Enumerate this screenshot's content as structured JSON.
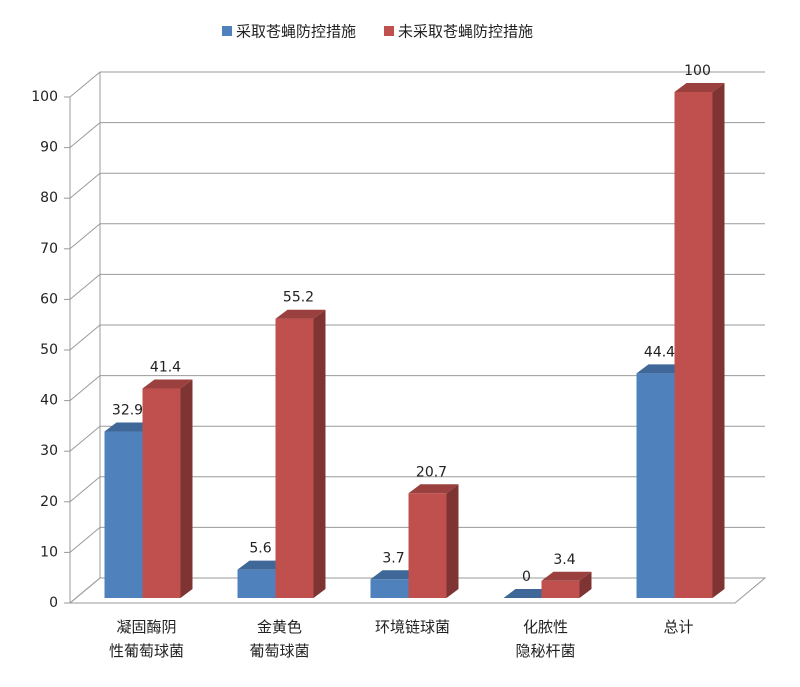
{
  "chart_data": {
    "type": "bar3d",
    "categories": [
      "凝固酶阴\n性葡萄球菌",
      "金黄色\n葡萄球菌",
      "环境链球菌",
      "化脓性\n隐秘杆菌",
      "总计"
    ],
    "series": [
      {
        "name": "采取苍蝇防控措施",
        "color": "#4f81bd",
        "values": [
          32.9,
          5.6,
          3.7,
          0,
          44.4
        ]
      },
      {
        "name": "未采取苍蝇防控措施",
        "color": "#c0504d",
        "values": [
          41.4,
          55.2,
          20.7,
          3.4,
          100
        ]
      }
    ],
    "ylim": [
      0,
      100
    ],
    "yticks": [
      0,
      10,
      20,
      30,
      40,
      50,
      60,
      70,
      80,
      90,
      100
    ],
    "grid": true,
    "legend": "top"
  }
}
